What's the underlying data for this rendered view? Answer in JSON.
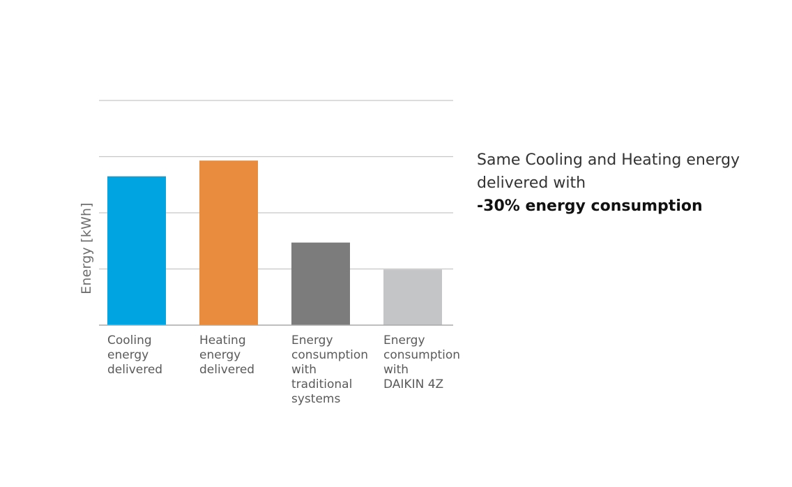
{
  "chart_data": {
    "type": "bar",
    "categories": [
      "Cooling\nenergy\ndelivered",
      "Heating\nenergy\ndelivered",
      "Energy\nconsumption\nwith\ntraditional\nsystems",
      "Energy\nconsumption\nwith\nDAIKIN 4Z"
    ],
    "values": [
      2.65,
      2.93,
      1.47,
      0.99
    ],
    "colors": [
      "#00a4e0",
      "#ea8c3e",
      "#7c7c7c",
      "#c4c5c7"
    ],
    "ylabel": "Energy [kWh]",
    "xlabel": "",
    "title": "",
    "ylim": [
      0,
      4
    ],
    "grid": true,
    "legend": "none"
  },
  "annotation": {
    "line1": "Same Cooling and Heating energy delivered with",
    "emphasis": "-30% energy consumption"
  }
}
